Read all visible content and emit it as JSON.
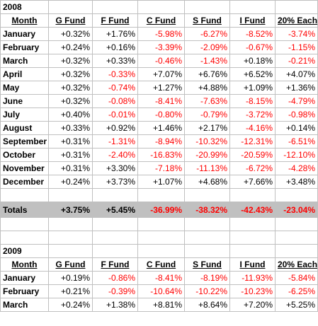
{
  "headers": [
    "Month",
    "G Fund",
    "F Fund",
    "C Fund",
    "S Fund",
    "I Fund",
    "20% Each"
  ],
  "y2008": {
    "year": "2008",
    "rows": [
      {
        "month": "January",
        "vals": [
          "+0.32%",
          "+1.76%",
          "-5.98%",
          "-6.27%",
          "-8.52%",
          "-3.74%"
        ]
      },
      {
        "month": "February",
        "vals": [
          "+0.24%",
          "+0.16%",
          "-3.39%",
          "-2.09%",
          "-0.67%",
          "-1.15%"
        ]
      },
      {
        "month": "March",
        "vals": [
          "+0.32%",
          "+0.33%",
          "-0.46%",
          "-1.43%",
          "+0.18%",
          "-0.21%"
        ]
      },
      {
        "month": "April",
        "vals": [
          "+0.32%",
          "-0.33%",
          "+7.07%",
          "+6.76%",
          "+6.52%",
          "+4.07%"
        ]
      },
      {
        "month": "May",
        "vals": [
          "+0.32%",
          "-0.74%",
          "+1.27%",
          "+4.88%",
          "+1.09%",
          "+1.36%"
        ]
      },
      {
        "month": "June",
        "vals": [
          "+0.32%",
          "-0.08%",
          "-8.41%",
          "-7.63%",
          "-8.15%",
          "-4.79%"
        ]
      },
      {
        "month": "July",
        "vals": [
          "+0.40%",
          "-0.01%",
          "-0.80%",
          "-0.79%",
          "-3.72%",
          "-0.98%"
        ]
      },
      {
        "month": "August",
        "vals": [
          "+0.33%",
          "+0.92%",
          "+1.46%",
          "+2.17%",
          "-4.16%",
          "+0.14%"
        ]
      },
      {
        "month": "September",
        "vals": [
          "+0.31%",
          "-1.31%",
          "-8.94%",
          "-10.32%",
          "-12.31%",
          "-6.51%"
        ]
      },
      {
        "month": "October",
        "vals": [
          "+0.31%",
          "-2.40%",
          "-16.83%",
          "-20.99%",
          "-20.59%",
          "-12.10%"
        ]
      },
      {
        "month": "November",
        "vals": [
          "+0.31%",
          "+3.30%",
          "-7.18%",
          "-11.13%",
          "-6.72%",
          "-4.28%"
        ]
      },
      {
        "month": "December",
        "vals": [
          "+0.24%",
          "+3.73%",
          "+1.07%",
          "+4.68%",
          "+7.66%",
          "+3.48%"
        ]
      }
    ],
    "totals": {
      "label": "Totals",
      "vals": [
        "+3.75%",
        "+5.45%",
        "-36.99%",
        "-38.32%",
        "-42.43%",
        "-23.04%"
      ]
    }
  },
  "y2009": {
    "year": "2009",
    "rows": [
      {
        "month": "January",
        "vals": [
          "+0.19%",
          "-0.86%",
          "-8.41%",
          "-8.19%",
          "-11.93%",
          "-5.84%"
        ]
      },
      {
        "month": "February",
        "vals": [
          "+0.21%",
          "-0.39%",
          "-10.64%",
          "-10.22%",
          "-10.23%",
          "-6.25%"
        ]
      },
      {
        "month": "March",
        "vals": [
          "+0.24%",
          "+1.38%",
          "+8.81%",
          "+8.64%",
          "+7.20%",
          "+5.25%"
        ]
      }
    ]
  },
  "colors": {
    "negative": "#ff0000",
    "positive": "#000000",
    "totals_bg": "#c0c0c0",
    "grid": "#c0c0c0"
  }
}
